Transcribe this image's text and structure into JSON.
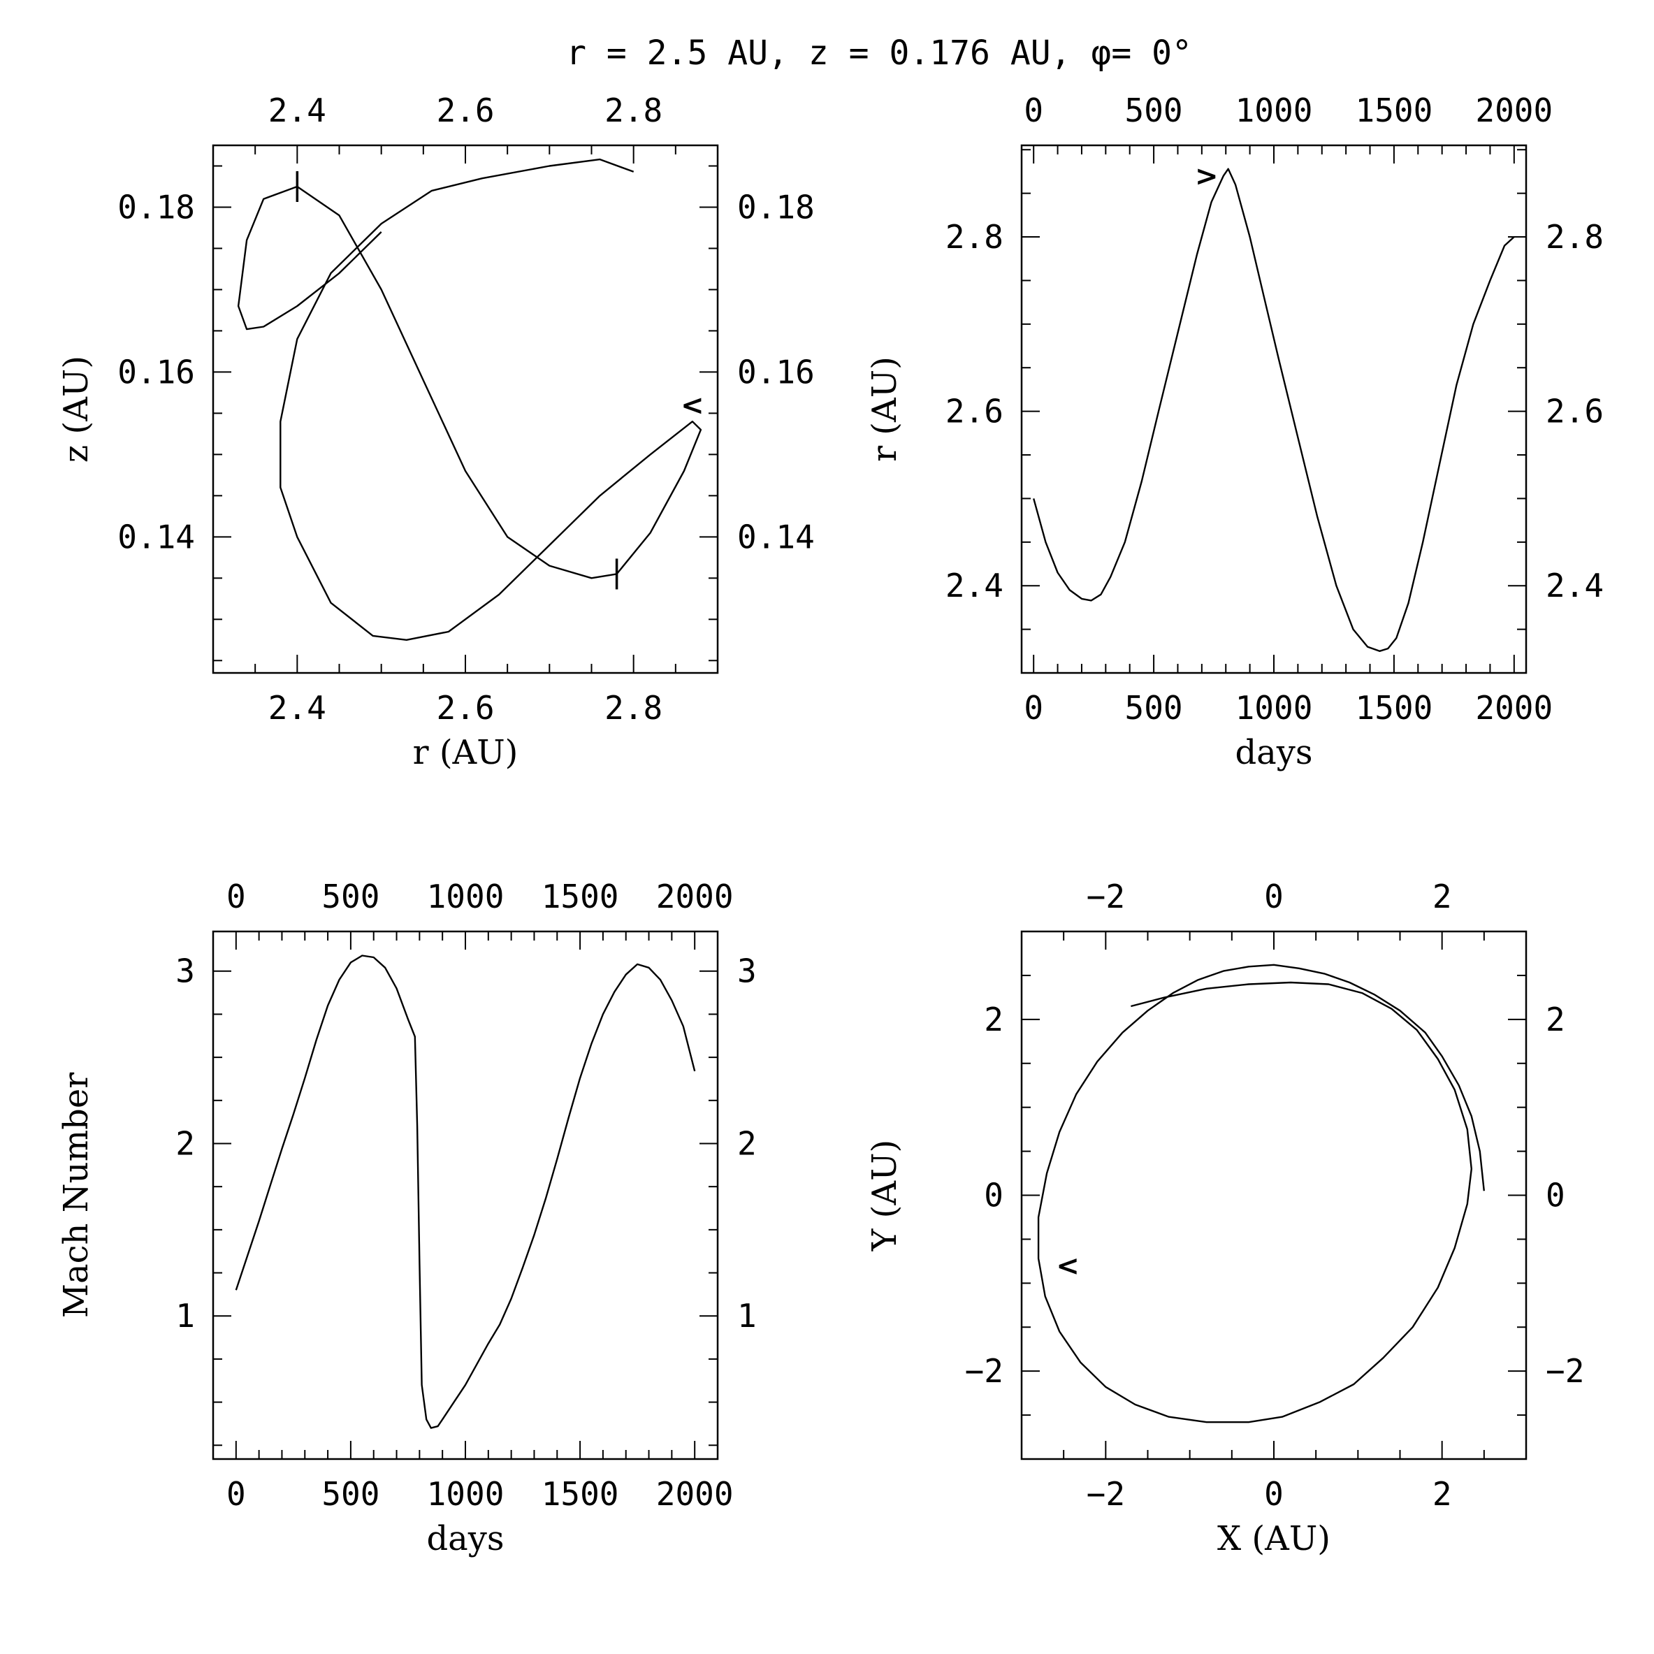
{
  "figure": {
    "title": "r = 2.5 AU, z = 0.176 AU, φ= 0°"
  },
  "chart_data": [
    {
      "id": "rz",
      "type": "line",
      "xlabel": "r (AU)",
      "ylabel": "z (AU)",
      "xlim": [
        2.3,
        2.9
      ],
      "ylim": [
        0.1235,
        0.1875
      ],
      "xticks_major": [
        2.4,
        2.6,
        2.8
      ],
      "xticks_minor_step": 0.05,
      "xtick_labels": [
        "2.4",
        "2.6",
        "2.8"
      ],
      "yticks_major": [
        0.14,
        0.16,
        0.18
      ],
      "yticks_minor_step": 0.005,
      "ytick_labels": [
        "0.14",
        "0.16",
        "0.18"
      ],
      "grid": false,
      "series": [
        {
          "x": [
            2.5,
            2.45,
            2.4,
            2.36,
            2.34,
            2.33,
            2.34,
            2.36,
            2.4,
            2.45,
            2.5,
            2.55,
            2.6,
            2.65,
            2.7,
            2.75,
            2.78,
            2.82,
            2.86,
            2.88,
            2.87,
            2.82,
            2.76,
            2.7,
            2.64,
            2.58,
            2.53,
            2.49,
            2.44,
            2.4,
            2.38,
            2.38,
            2.4,
            2.44,
            2.5,
            2.56,
            2.62,
            2.7,
            2.76,
            2.8
          ],
          "y": [
            0.177,
            0.172,
            0.168,
            0.1655,
            0.1652,
            0.168,
            0.176,
            0.181,
            0.1825,
            0.179,
            0.17,
            0.159,
            0.148,
            0.14,
            0.1365,
            0.135,
            0.1355,
            0.1405,
            0.148,
            0.153,
            0.154,
            0.15,
            0.145,
            0.139,
            0.133,
            0.1285,
            0.1275,
            0.128,
            0.132,
            0.14,
            0.146,
            0.154,
            0.164,
            0.172,
            0.178,
            0.182,
            0.1835,
            0.185,
            0.1858,
            0.1843
          ]
        }
      ],
      "markers": [
        {
          "kind": "bar",
          "x": 2.4,
          "y": 0.1825
        },
        {
          "kind": "bar",
          "x": 2.78,
          "y": 0.1355
        },
        {
          "kind": "text",
          "label": "<",
          "x": 2.87,
          "y": 0.156
        }
      ]
    },
    {
      "id": "r-days",
      "type": "line",
      "xlabel": "days",
      "ylabel": "r (AU)",
      "xlim": [
        -50,
        2050
      ],
      "ylim": [
        2.3,
        2.905
      ],
      "xticks_major": [
        0,
        500,
        1000,
        1500,
        2000
      ],
      "xticks_minor_step": 100,
      "xtick_labels": [
        "0",
        "500",
        "1000",
        "1500",
        "2000"
      ],
      "yticks_major": [
        2.4,
        2.6,
        2.8
      ],
      "yticks_minor_step": 0.05,
      "ytick_labels": [
        "2.4",
        "2.6",
        "2.8"
      ],
      "grid": false,
      "series": [
        {
          "x": [
            0,
            50,
            100,
            150,
            200,
            240,
            280,
            320,
            380,
            450,
            520,
            600,
            680,
            740,
            790,
            810,
            840,
            900,
            960,
            1020,
            1100,
            1180,
            1260,
            1330,
            1390,
            1440,
            1475,
            1510,
            1560,
            1620,
            1690,
            1760,
            1830,
            1900,
            1960,
            2000
          ],
          "y": [
            2.5,
            2.45,
            2.415,
            2.395,
            2.385,
            2.383,
            2.39,
            2.41,
            2.45,
            2.52,
            2.6,
            2.69,
            2.78,
            2.84,
            2.87,
            2.878,
            2.86,
            2.8,
            2.73,
            2.66,
            2.57,
            2.48,
            2.4,
            2.35,
            2.33,
            2.325,
            2.328,
            2.34,
            2.38,
            2.45,
            2.54,
            2.63,
            2.7,
            2.75,
            2.79,
            2.8
          ]
        }
      ],
      "markers": [
        {
          "kind": "text",
          "label": ">",
          "x": 720,
          "y": 2.87
        }
      ]
    },
    {
      "id": "mach-days",
      "type": "line",
      "xlabel": "days",
      "ylabel": "Mach Number",
      "xlim": [
        -100,
        2100
      ],
      "ylim": [
        0.17,
        3.23
      ],
      "xticks_major": [
        0,
        500,
        1000,
        1500,
        2000
      ],
      "xticks_minor_step": 100,
      "xtick_labels": [
        "0",
        "500",
        "1000",
        "1500",
        "2000"
      ],
      "yticks_major": [
        1,
        2,
        3
      ],
      "yticks_minor_step": 0.25,
      "ytick_labels": [
        "1",
        "2",
        "3"
      ],
      "grid": false,
      "series": [
        {
          "x": [
            0,
            50,
            100,
            150,
            200,
            250,
            300,
            350,
            400,
            450,
            500,
            550,
            600,
            650,
            700,
            750,
            780,
            790,
            800,
            810,
            830,
            850,
            880,
            900,
            950,
            1000,
            1050,
            1100,
            1150,
            1200,
            1250,
            1300,
            1350,
            1400,
            1450,
            1500,
            1550,
            1600,
            1650,
            1700,
            1750,
            1800,
            1850,
            1900,
            1950,
            2000
          ],
          "y": [
            1.15,
            1.35,
            1.55,
            1.76,
            1.97,
            2.17,
            2.38,
            2.6,
            2.8,
            2.95,
            3.05,
            3.09,
            3.08,
            3.02,
            2.9,
            2.72,
            2.62,
            2.1,
            1.3,
            0.6,
            0.4,
            0.35,
            0.36,
            0.4,
            0.5,
            0.6,
            0.72,
            0.84,
            0.95,
            1.1,
            1.28,
            1.47,
            1.68,
            1.91,
            2.15,
            2.38,
            2.58,
            2.75,
            2.88,
            2.98,
            3.04,
            3.02,
            2.95,
            2.83,
            2.68,
            2.42
          ]
        }
      ],
      "markers": []
    },
    {
      "id": "xy",
      "type": "line",
      "xlabel": "X (AU)",
      "ylabel": "Y (AU)",
      "xlim": [
        -3.0,
        3.0
      ],
      "ylim": [
        -3.0,
        3.0
      ],
      "xticks_major": [
        -2,
        0,
        2
      ],
      "xticks_minor_step": 0.5,
      "xtick_labels": [
        "−2",
        "0",
        "2"
      ],
      "yticks_major": [
        -2,
        0,
        2
      ],
      "yticks_minor_step": 0.5,
      "ytick_labels": [
        "−2",
        "0",
        "2"
      ],
      "grid": false,
      "series": [
        {
          "x": [
            2.5,
            2.45,
            2.35,
            2.2,
            2.0,
            1.8,
            1.5,
            1.2,
            0.9,
            0.6,
            0.3,
            0.0,
            -0.3,
            -0.6,
            -0.9,
            -1.2,
            -1.5,
            -1.8,
            -2.1,
            -2.35,
            -2.55,
            -2.7,
            -2.8,
            -2.8,
            -2.72,
            -2.55,
            -2.3,
            -2.0,
            -1.65,
            -1.25,
            -0.8,
            -0.3,
            0.1,
            0.55,
            0.95,
            1.3,
            1.65,
            1.95,
            2.15,
            2.3,
            2.35,
            2.3,
            2.15,
            1.95,
            1.7,
            1.4,
            1.05,
            0.65,
            0.2,
            -0.3,
            -0.8,
            -1.3,
            -1.7
          ],
          "y": [
            0.05,
            0.5,
            0.9,
            1.25,
            1.58,
            1.85,
            2.1,
            2.28,
            2.42,
            2.52,
            2.58,
            2.62,
            2.6,
            2.55,
            2.45,
            2.3,
            2.1,
            1.85,
            1.52,
            1.15,
            0.72,
            0.25,
            -0.25,
            -0.72,
            -1.15,
            -1.55,
            -1.9,
            -2.18,
            -2.38,
            -2.52,
            -2.58,
            -2.58,
            -2.52,
            -2.35,
            -2.15,
            -1.85,
            -1.5,
            -1.05,
            -0.6,
            -0.1,
            0.3,
            0.75,
            1.2,
            1.55,
            1.88,
            2.12,
            2.3,
            2.4,
            2.42,
            2.4,
            2.35,
            2.25,
            2.15
          ]
        }
      ],
      "markers": [
        {
          "kind": "text",
          "label": "<",
          "x": -2.45,
          "y": -0.8
        }
      ]
    }
  ]
}
